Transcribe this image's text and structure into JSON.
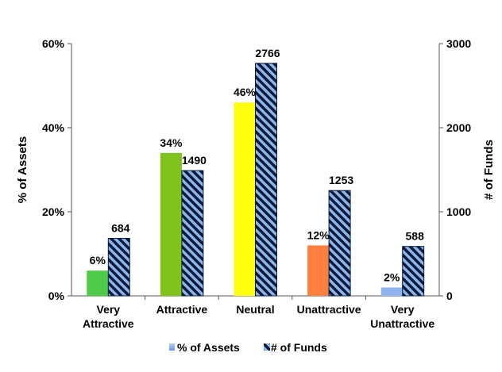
{
  "chart_data": {
    "type": "bar",
    "categories": [
      "Very Attractive",
      "Attractive",
      "Neutral",
      "Unattractive",
      "Very Unattractive"
    ],
    "category_lines": [
      [
        "Very",
        "Attractive"
      ],
      [
        "Attractive"
      ],
      [
        "Neutral"
      ],
      [
        "Unattractive"
      ],
      [
        "Very",
        "Unattractive"
      ]
    ],
    "series": [
      {
        "name": "% of Assets",
        "axis": "left",
        "values": [
          6,
          34,
          46,
          12,
          2
        ],
        "labels": [
          "6%",
          "34%",
          "46%",
          "12%",
          "2%"
        ],
        "colors": [
          "#4fc94a",
          "#7fc31c",
          "#ffff10",
          "#ff7f3f",
          "#8fb4f0"
        ]
      },
      {
        "name": "# of Funds",
        "axis": "right",
        "values": [
          684,
          1490,
          2766,
          1253,
          588
        ],
        "labels": [
          "684",
          "1490",
          "2766",
          "1253",
          "588"
        ],
        "pattern": "diagonal-stripes",
        "colors": [
          "#0b1a3a",
          "#8cb6ea"
        ]
      }
    ],
    "ylabel": "% of Assets",
    "y2label": "# of Funds",
    "ylim": [
      0,
      60
    ],
    "y2lim": [
      0,
      3000
    ],
    "yticks": [
      "0%",
      "20%",
      "40%",
      "60%"
    ],
    "y2ticks": [
      "0",
      "1000",
      "2000",
      "3000"
    ],
    "legend_position": "bottom",
    "grid": false
  }
}
